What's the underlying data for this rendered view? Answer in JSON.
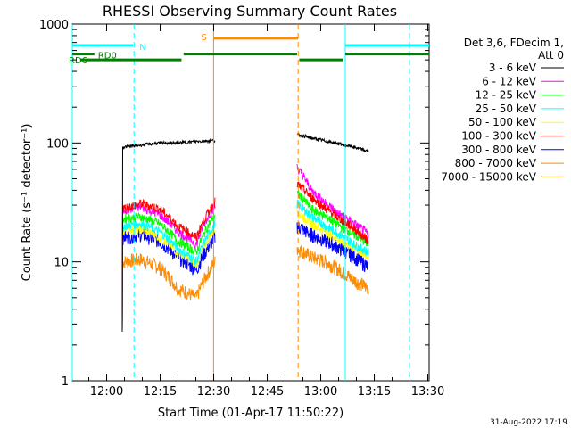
{
  "chart_data": {
    "type": "line",
    "title": "RHESSI Observing Summary Count Rates",
    "xlabel": "Start Time (01-Apr-17 11:50:22)",
    "ylabel": "Count Rate (s⁻¹ detector⁻¹)",
    "yscale": "log",
    "ylim": [
      1,
      1000
    ],
    "xlim_minutes_after_start": [
      0,
      100
    ],
    "x_ticks": [
      "12:00",
      "12:15",
      "12:30",
      "12:45",
      "13:00",
      "13:15",
      "13:30"
    ],
    "x_tick_minutes": [
      9.63,
      24.63,
      39.63,
      54.63,
      69.63,
      84.63,
      99.63
    ],
    "y_ticks": [
      "1",
      "10",
      "100",
      "1000"
    ],
    "y_tick_values": [
      1,
      10,
      100,
      1000
    ],
    "legend_header": [
      "Det 3,6, FDecim 1,",
      "Att 0"
    ],
    "legend_position": "right",
    "timestamp": "31-Aug-2022 17:19",
    "segments": [
      [
        14,
        40
      ],
      [
        63,
        83
      ]
    ],
    "series": [
      {
        "name": "3 - 6 keV",
        "color": "#000000",
        "seg1": [
          92,
          96,
          100,
          100,
          103,
          105
        ],
        "seg2": [
          118,
          110,
          104,
          98,
          92,
          85
        ]
      },
      {
        "name": "6 - 12 keV",
        "color": "#ff00ff",
        "seg1": [
          27,
          29,
          25,
          18,
          14,
          30
        ],
        "seg2": [
          62,
          40,
          31,
          25,
          21,
          17
        ]
      },
      {
        "name": "12 - 25 keV",
        "color": "#00ff00",
        "seg1": [
          23,
          24,
          21,
          15,
          12,
          25
        ],
        "seg2": [
          38,
          28,
          24,
          20,
          17,
          14
        ]
      },
      {
        "name": "25 - 50 keV",
        "color": "#00ffff",
        "seg1": [
          20,
          21,
          18,
          13,
          10,
          21
        ],
        "seg2": [
          31,
          24,
          20,
          17,
          14,
          12
        ]
      },
      {
        "name": "50 - 100 keV",
        "color": "#ffff00",
        "seg1": [
          18,
          19,
          16,
          12,
          9.5,
          19
        ],
        "seg2": [
          26,
          21,
          18,
          15,
          13,
          11
        ]
      },
      {
        "name": "100 - 300 keV",
        "color": "#ff0000",
        "seg1": [
          28,
          31,
          28,
          20,
          16,
          32
        ],
        "seg2": [
          45,
          35,
          28,
          23,
          19,
          15
        ]
      },
      {
        "name": "300 - 800 keV",
        "color": "#0000ff",
        "seg1": [
          16,
          17,
          15,
          11,
          8.5,
          16
        ],
        "seg2": [
          20,
          17,
          15,
          13,
          11,
          9
        ]
      },
      {
        "name": "800 - 7000 keV",
        "color": "#ff8c00",
        "seg1": [
          10,
          10.5,
          9,
          6,
          5,
          10
        ],
        "seg2": [
          13,
          11,
          10,
          8.5,
          7,
          6
        ]
      },
      {
        "name": "7000 - 15000 keV",
        "color": "#b8860b",
        "seg1": [],
        "seg2": []
      }
    ],
    "flag_bars": [
      {
        "label": "N",
        "color": "#00ffff",
        "segments": [
          [
            0,
            17
          ],
          [
            76.5,
            100
          ]
        ],
        "level": 660,
        "vlines": [
          0,
          17.3,
          76.5,
          94.5
        ],
        "vline_dashed": [
          false,
          true,
          false,
          true
        ]
      },
      {
        "label": "S",
        "color": "#ff8c00",
        "segments": [
          [
            39.6,
            63.3
          ]
        ],
        "level": 760,
        "vlines": [
          39.6,
          63.3
        ],
        "vline_dashed": [
          false,
          true
        ]
      },
      {
        "label": "RD0",
        "color": "#008000",
        "segments": [
          [
            0,
            6.2
          ]
        ],
        "level": 560
      },
      {
        "label": "RD6",
        "color": "#008000",
        "segments": [
          [
            2.2,
            30.6
          ],
          [
            31.2,
            63
          ],
          [
            63.6,
            76
          ],
          [
            76.5,
            100
          ]
        ],
        "level_pairs": [
          500,
          560,
          500,
          560
        ]
      }
    ]
  }
}
